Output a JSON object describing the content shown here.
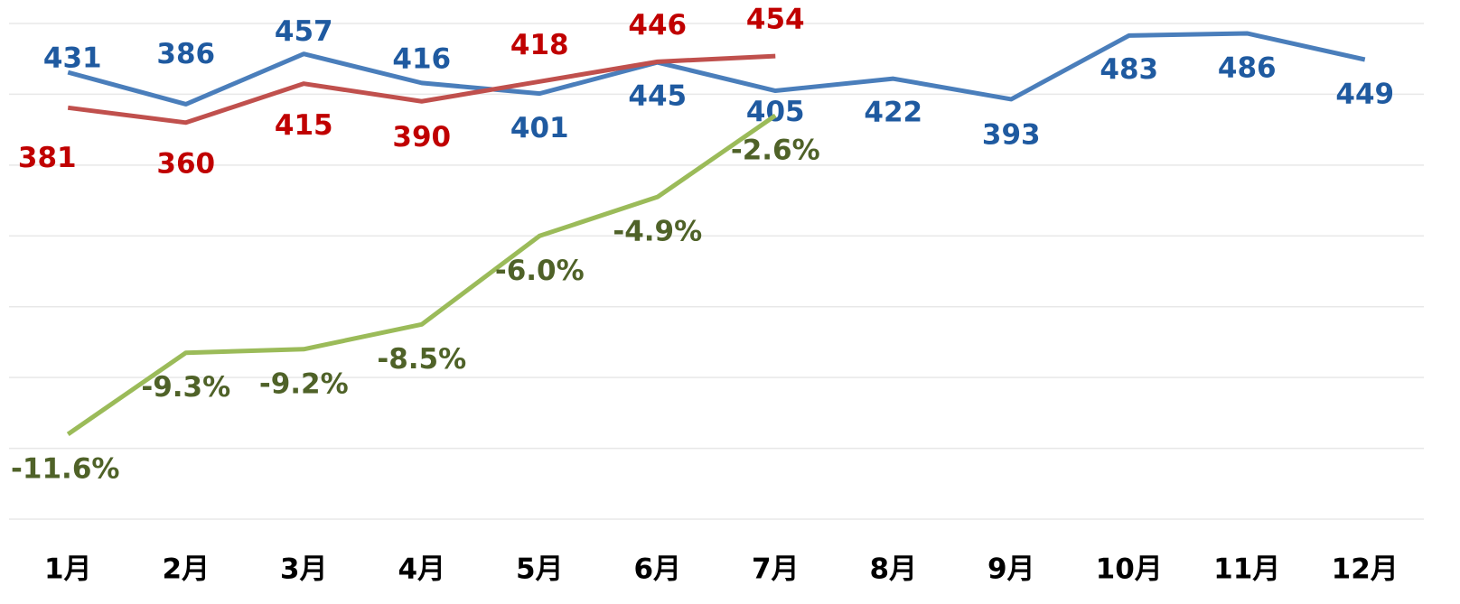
{
  "chart_data": {
    "type": "line",
    "categories": [
      "1月",
      "2月",
      "3月",
      "4月",
      "5月",
      "6月",
      "7月",
      "8月",
      "9月",
      "10月",
      "11月",
      "12月"
    ],
    "series": [
      {
        "color": "#4a7ebb",
        "label_color": "#1f5aa0",
        "values": [
          431,
          386,
          457,
          416,
          401,
          445,
          405,
          422,
          393,
          483,
          486,
          449
        ]
      },
      {
        "color": "#c0504d",
        "label_color": "#c00000",
        "values": [
          381,
          360,
          415,
          390,
          418,
          446,
          454,
          null,
          null,
          null,
          null,
          null
        ]
      },
      {
        "color": "#9bbb59",
        "label_color": "#4f6228",
        "axis": "y2",
        "values": [
          -11.6,
          -9.3,
          -9.2,
          -8.5,
          -6.0,
          -4.9,
          -2.6,
          null,
          null,
          null,
          null,
          null
        ],
        "value_labels": [
          "-11.6%",
          "-9.3%",
          "-9.2%",
          "-8.5%",
          "-6.0%",
          "-4.9%",
          "-2.6%",
          null,
          null,
          null,
          null,
          null
        ]
      }
    ],
    "ylim": [
      -200,
      500
    ],
    "yticks": [
      -200,
      -100,
      0,
      100,
      200,
      300,
      400,
      500
    ],
    "y2lim": [
      -14,
      0
    ],
    "grid": true
  }
}
